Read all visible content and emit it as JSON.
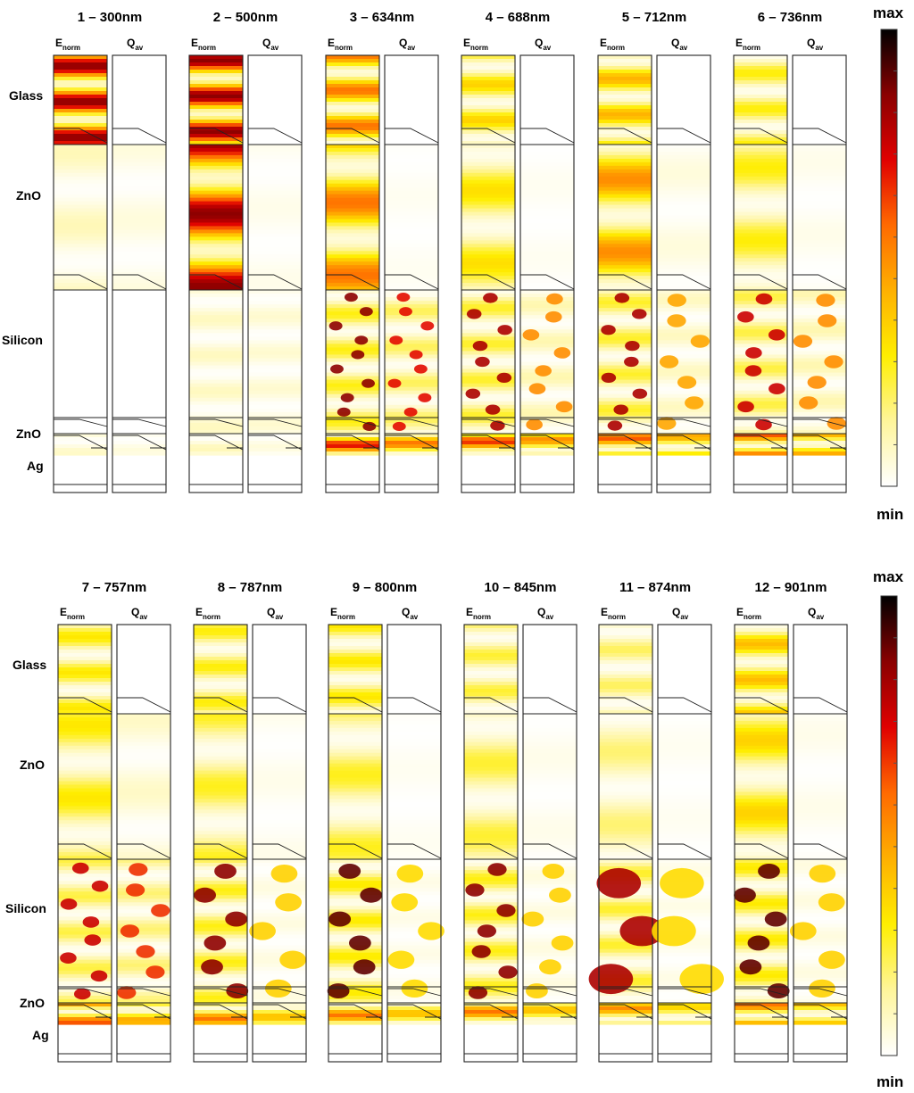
{
  "layer_labels": [
    "Glass",
    "ZnO",
    "Silicon",
    "ZnO",
    "Ag"
  ],
  "column_labels": {
    "e_main": "E",
    "e_sub": "norm",
    "q_main": "Q",
    "q_sub": "av"
  },
  "colorbar": {
    "max_label": "max",
    "min_label": "min"
  },
  "colors": {
    "frame": "#222222",
    "low": "#ffffff",
    "ramp": [
      "#ffffff",
      "#fff59a",
      "#ffee00",
      "#ffb000",
      "#ff6a00",
      "#e00000",
      "#8a0000",
      "#000000"
    ]
  },
  "rows": [
    {
      "panels": [
        {
          "label": "1 – 300nm",
          "e": {
            "glass": 0.85,
            "zno": 0.1,
            "si": 0.0,
            "bot": 0.08,
            "si_bumps": 0
          },
          "q": {
            "glass": 0.0,
            "zno": 0.05,
            "si": 0.0,
            "bot": 0.05,
            "si_bumps": 0
          }
        },
        {
          "label": "2 – 500nm",
          "e": {
            "glass": 0.85,
            "zno": 0.85,
            "si": 0.2,
            "bot": 0.1,
            "si_bumps": 0
          },
          "q": {
            "glass": 0.0,
            "zno": 0.03,
            "si": 0.15,
            "bot": 0.05,
            "si_bumps": 0
          }
        },
        {
          "label": "3 – 634nm",
          "e": {
            "glass": 0.55,
            "zno": 0.55,
            "si": 0.6,
            "bot": 0.7,
            "si_bumps": 10
          },
          "q": {
            "glass": 0.0,
            "zno": 0.02,
            "si": 0.45,
            "bot": 0.55,
            "si_bumps": 10
          }
        },
        {
          "label": "4 – 688nm",
          "e": {
            "glass": 0.35,
            "zno": 0.32,
            "si": 0.55,
            "bot": 0.65,
            "si_bumps": 9
          },
          "q": {
            "glass": 0.0,
            "zno": 0.02,
            "si": 0.25,
            "bot": 0.5,
            "si_bumps": 8
          }
        },
        {
          "label": "5 – 712nm",
          "e": {
            "glass": 0.42,
            "zno": 0.5,
            "si": 0.55,
            "bot": 0.6,
            "si_bumps": 9
          },
          "q": {
            "glass": 0.0,
            "zno": 0.05,
            "si": 0.2,
            "bot": 0.45,
            "si_bumps": 7
          }
        },
        {
          "label": "6 – 736nm",
          "e": {
            "glass": 0.28,
            "zno": 0.28,
            "si": 0.5,
            "bot": 0.6,
            "si_bumps": 8
          },
          "q": {
            "glass": 0.0,
            "zno": 0.03,
            "si": 0.25,
            "bot": 0.45,
            "si_bumps": 7
          }
        }
      ]
    },
    {
      "panels": [
        {
          "label": "7 – 757nm",
          "e": {
            "glass": 0.3,
            "zno": 0.3,
            "si": 0.5,
            "bot": 0.6,
            "si_bumps": 8
          },
          "q": {
            "glass": 0.0,
            "zno": 0.08,
            "si": 0.4,
            "bot": 0.45,
            "si_bumps": 7
          }
        },
        {
          "label": "8 – 787nm",
          "e": {
            "glass": 0.28,
            "zno": 0.26,
            "si": 0.6,
            "bot": 0.55,
            "si_bumps": 6
          },
          "q": {
            "glass": 0.0,
            "zno": 0.03,
            "si": 0.1,
            "bot": 0.4,
            "si_bumps": 5
          }
        },
        {
          "label": "9 – 800nm",
          "e": {
            "glass": 0.3,
            "zno": 0.26,
            "si": 0.65,
            "bot": 0.55,
            "si_bumps": 6
          },
          "q": {
            "glass": 0.0,
            "zno": 0.02,
            "si": 0.08,
            "bot": 0.4,
            "si_bumps": 5
          }
        },
        {
          "label": "10 – 845nm",
          "e": {
            "glass": 0.24,
            "zno": 0.24,
            "si": 0.6,
            "bot": 0.55,
            "si_bumps": 7
          },
          "q": {
            "glass": 0.0,
            "zno": 0.03,
            "si": 0.1,
            "bot": 0.4,
            "si_bumps": 6
          }
        },
        {
          "label": "11 – 874nm",
          "e": {
            "glass": 0.2,
            "zno": 0.18,
            "si": 0.55,
            "bot": 0.5,
            "si_bumps": 3
          },
          "q": {
            "glass": 0.0,
            "zno": 0.02,
            "si": 0.08,
            "bot": 0.35,
            "si_bumps": 3
          }
        },
        {
          "label": "12 – 901nm",
          "e": {
            "glass": 0.4,
            "zno": 0.35,
            "si": 0.65,
            "bot": 0.55,
            "si_bumps": 6
          },
          "q": {
            "glass": 0.0,
            "zno": 0.03,
            "si": 0.1,
            "bot": 0.4,
            "si_bumps": 5
          }
        }
      ]
    }
  ]
}
